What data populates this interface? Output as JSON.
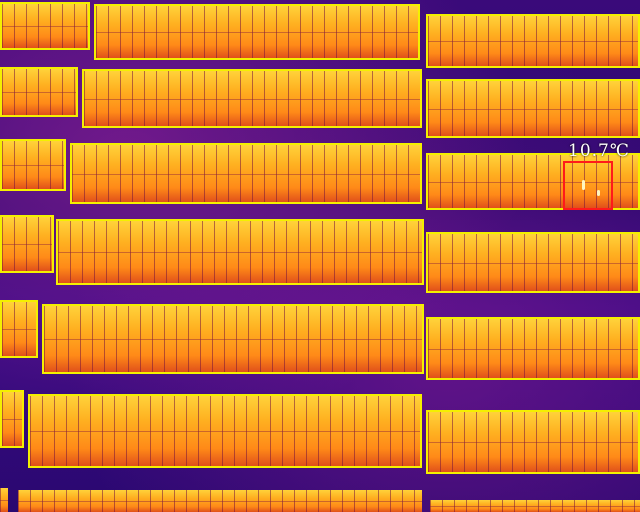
{
  "thermal_view": {
    "temperature_label": "10.7℃",
    "colors": {
      "detection_box": "#f4f000",
      "hotspot_box": "#ff1a1a",
      "background": "#2a0870",
      "panel": "#ffb020"
    }
  }
}
